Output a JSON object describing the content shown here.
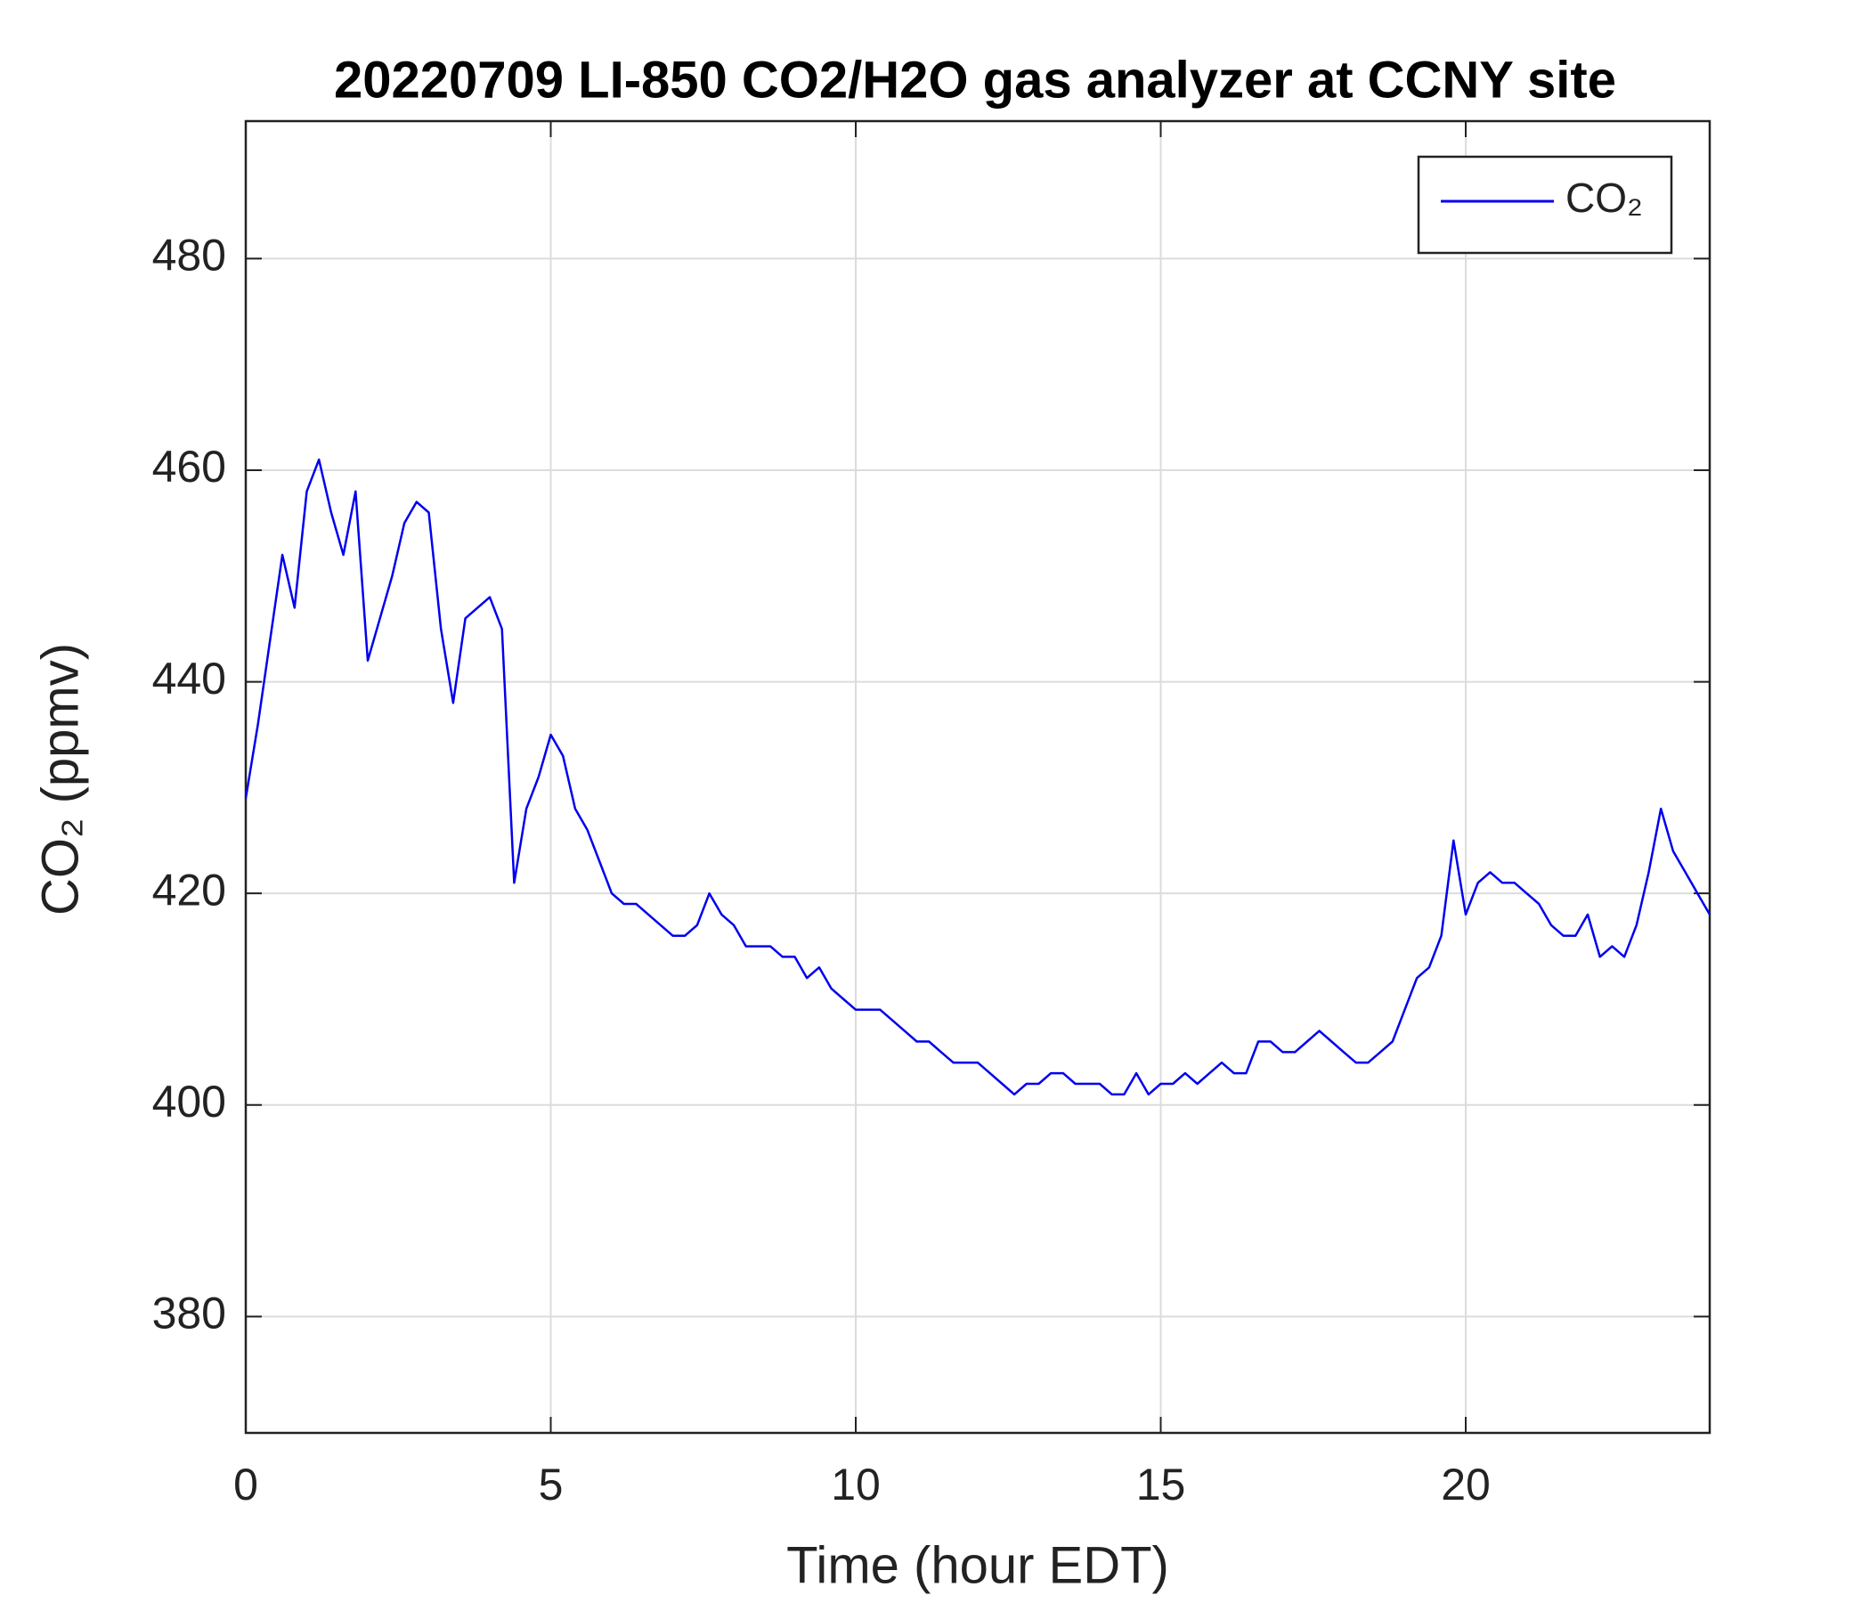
{
  "chart_data": {
    "type": "line",
    "title": "20220709 LI-850 CO2/H2O gas analyzer at CCNY site",
    "x_label": "Time (hour EDT)",
    "y_label": "CO₂ (ppmv)",
    "xlim": [
      0,
      24
    ],
    "xticks": [
      0,
      5,
      10,
      15,
      20
    ],
    "ylim": [
      369,
      493
    ],
    "yticks": [
      380,
      400,
      420,
      440,
      460,
      480
    ],
    "grid": true,
    "legend": "upper right",
    "x": [
      0,
      0.2,
      0.4,
      0.6,
      0.8,
      1,
      1.2,
      1.4,
      1.6,
      1.8,
      2,
      2.2,
      2.4,
      2.6,
      2.8,
      3,
      3.2,
      3.4,
      3.6,
      3.8,
      4,
      4.2,
      4.4,
      4.6,
      4.8,
      5,
      5.2,
      5.4,
      5.6,
      5.8,
      6,
      6.2,
      6.4,
      6.6,
      6.8,
      7,
      7.2,
      7.4,
      7.6,
      7.8,
      8,
      8.2,
      8.4,
      8.6,
      8.8,
      9,
      9.2,
      9.4,
      9.6,
      9.8,
      10,
      10.2,
      10.4,
      10.6,
      10.8,
      11,
      11.2,
      11.4,
      11.6,
      11.8,
      12,
      12.2,
      12.4,
      12.6,
      12.8,
      13,
      13.2,
      13.4,
      13.6,
      13.8,
      14,
      14.2,
      14.4,
      14.6,
      14.8,
      15,
      15.2,
      15.4,
      15.6,
      15.8,
      16,
      16.2,
      16.4,
      16.6,
      16.8,
      17,
      17.2,
      17.4,
      17.6,
      17.8,
      18,
      18.2,
      18.4,
      18.6,
      18.8,
      19,
      19.2,
      19.4,
      19.6,
      19.8,
      20,
      20.2,
      20.4,
      20.6,
      20.8,
      21,
      21.2,
      21.4,
      21.6,
      21.8,
      22,
      22.2,
      22.4,
      22.6,
      22.8,
      23,
      23.2,
      23.4,
      23.6,
      23.8,
      24
    ],
    "series": [
      {
        "name": "CO₂",
        "color": "#0000ee",
        "values": [
          429,
          436,
          444,
          452,
          447,
          458,
          461,
          456,
          452,
          458,
          442,
          446,
          450,
          455,
          457,
          456,
          445,
          438,
          446,
          447,
          448,
          445,
          421,
          428,
          431,
          435,
          433,
          428,
          426,
          423,
          420,
          419,
          419,
          418,
          417,
          416,
          416,
          417,
          420,
          418,
          417,
          415,
          415,
          415,
          414,
          414,
          412,
          413,
          411,
          410,
          409,
          409,
          409,
          408,
          407,
          406,
          406,
          405,
          404,
          404,
          404,
          403,
          402,
          401,
          402,
          402,
          403,
          403,
          402,
          402,
          402,
          401,
          401,
          403,
          401,
          402,
          402,
          403,
          402,
          403,
          404,
          403,
          403,
          406,
          406,
          405,
          405,
          406,
          407,
          406,
          405,
          404,
          404,
          405,
          406,
          409,
          412,
          413,
          416,
          425,
          418,
          421,
          422,
          421,
          421,
          420,
          419,
          417,
          416,
          416,
          418,
          414,
          415,
          414,
          417,
          422,
          428,
          424,
          422,
          420,
          418
        ]
      }
    ]
  }
}
